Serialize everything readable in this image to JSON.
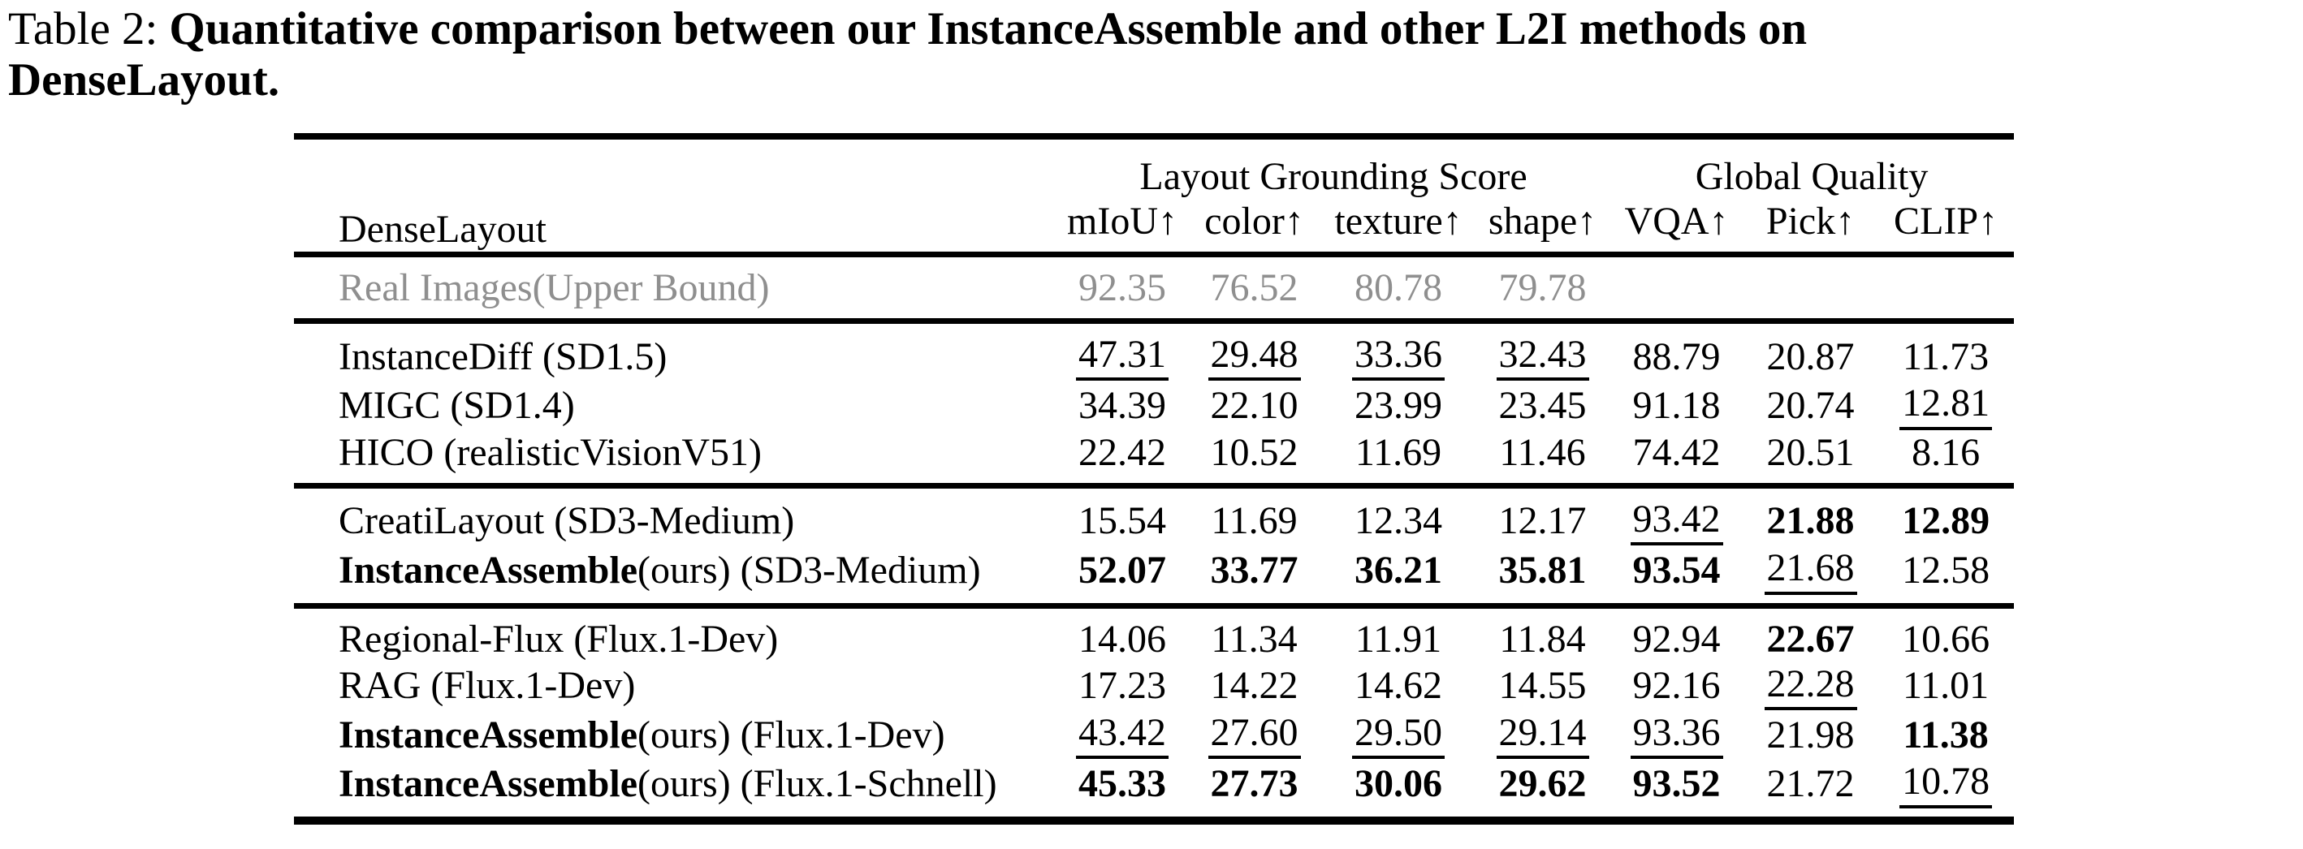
{
  "caption": {
    "label": "Table 2:",
    "bold_line1": "Quantitative comparison between our InstanceAssemble and other L2I methods on",
    "bold_line2": "DenseLayout."
  },
  "colors": {
    "upper_bound_gray": "#8f8f8f",
    "text": "#000000",
    "background": "#ffffff"
  },
  "table": {
    "corner_label": "DenseLayout",
    "group_headers": [
      {
        "label": "Layout Grounding Score",
        "span": 4
      },
      {
        "label": "Global Quality",
        "span": 3
      }
    ],
    "columns": [
      "mIoU↑",
      "color↑",
      "texture↑",
      "shape↑",
      "VQA↑",
      "Pick↑",
      "CLIP↑"
    ],
    "upper_bound_row": {
      "name": "Real Images(Upper Bound)",
      "cells": [
        {
          "v": "92.35"
        },
        {
          "v": "76.52"
        },
        {
          "v": "80.78"
        },
        {
          "v": "79.78"
        },
        {
          "v": ""
        },
        {
          "v": ""
        },
        {
          "v": ""
        }
      ]
    },
    "sections": [
      {
        "rows": [
          {
            "name": "InstanceDiff (SD1.5)",
            "cells": [
              {
                "v": "47.31",
                "u": true
              },
              {
                "v": "29.48",
                "u": true
              },
              {
                "v": "33.36",
                "u": true
              },
              {
                "v": "32.43",
                "u": true
              },
              {
                "v": "88.79"
              },
              {
                "v": "20.87"
              },
              {
                "v": "11.73"
              }
            ]
          },
          {
            "name": "MIGC (SD1.4)",
            "cells": [
              {
                "v": "34.39"
              },
              {
                "v": "22.10"
              },
              {
                "v": "23.99"
              },
              {
                "v": "23.45"
              },
              {
                "v": "91.18"
              },
              {
                "v": "20.74"
              },
              {
                "v": "12.81",
                "u": true
              }
            ]
          },
          {
            "name": "HICO (realisticVisionV51)",
            "cells": [
              {
                "v": "22.42"
              },
              {
                "v": "10.52"
              },
              {
                "v": "11.69"
              },
              {
                "v": "11.46"
              },
              {
                "v": "74.42"
              },
              {
                "v": "20.51"
              },
              {
                "v": "8.16"
              }
            ]
          }
        ]
      },
      {
        "rows": [
          {
            "name": "CreatiLayout (SD3-Medium)",
            "cells": [
              {
                "v": "15.54"
              },
              {
                "v": "11.69"
              },
              {
                "v": "12.34"
              },
              {
                "v": "12.17"
              },
              {
                "v": "93.42",
                "u": true
              },
              {
                "v": "21.88",
                "b": true
              },
              {
                "v": "12.89",
                "b": true
              }
            ]
          },
          {
            "name_bold": "InstanceAssemble",
            "name": "(ours) (SD3-Medium)",
            "cells": [
              {
                "v": "52.07",
                "b": true
              },
              {
                "v": "33.77",
                "b": true
              },
              {
                "v": "36.21",
                "b": true
              },
              {
                "v": "35.81",
                "b": true
              },
              {
                "v": "93.54",
                "b": true
              },
              {
                "v": "21.68",
                "u": true
              },
              {
                "v": "12.58"
              }
            ]
          }
        ]
      },
      {
        "rows": [
          {
            "name": "Regional-Flux (Flux.1-Dev)",
            "cells": [
              {
                "v": "14.06"
              },
              {
                "v": "11.34"
              },
              {
                "v": "11.91"
              },
              {
                "v": "11.84"
              },
              {
                "v": "92.94"
              },
              {
                "v": "22.67",
                "b": true
              },
              {
                "v": "10.66"
              }
            ]
          },
          {
            "name": "RAG (Flux.1-Dev)",
            "cells": [
              {
                "v": "17.23"
              },
              {
                "v": "14.22"
              },
              {
                "v": "14.62"
              },
              {
                "v": "14.55"
              },
              {
                "v": "92.16"
              },
              {
                "v": "22.28",
                "u": true
              },
              {
                "v": "11.01"
              }
            ]
          },
          {
            "name_bold": "InstanceAssemble",
            "name": "(ours) (Flux.1-Dev)",
            "cells": [
              {
                "v": "43.42",
                "u": true
              },
              {
                "v": "27.60",
                "u": true
              },
              {
                "v": "29.50",
                "u": true
              },
              {
                "v": "29.14",
                "u": true
              },
              {
                "v": "93.36",
                "u": true
              },
              {
                "v": "21.98"
              },
              {
                "v": "11.38",
                "b": true
              }
            ]
          },
          {
            "name_bold": "InstanceAssemble",
            "name": "(ours) (Flux.1-Schnell)",
            "cells": [
              {
                "v": "45.33",
                "b": true
              },
              {
                "v": "27.73",
                "b": true
              },
              {
                "v": "30.06",
                "b": true
              },
              {
                "v": "29.62",
                "b": true
              },
              {
                "v": "93.52",
                "b": true
              },
              {
                "v": "21.72"
              },
              {
                "v": "10.78",
                "u": true
              }
            ]
          }
        ]
      }
    ]
  }
}
